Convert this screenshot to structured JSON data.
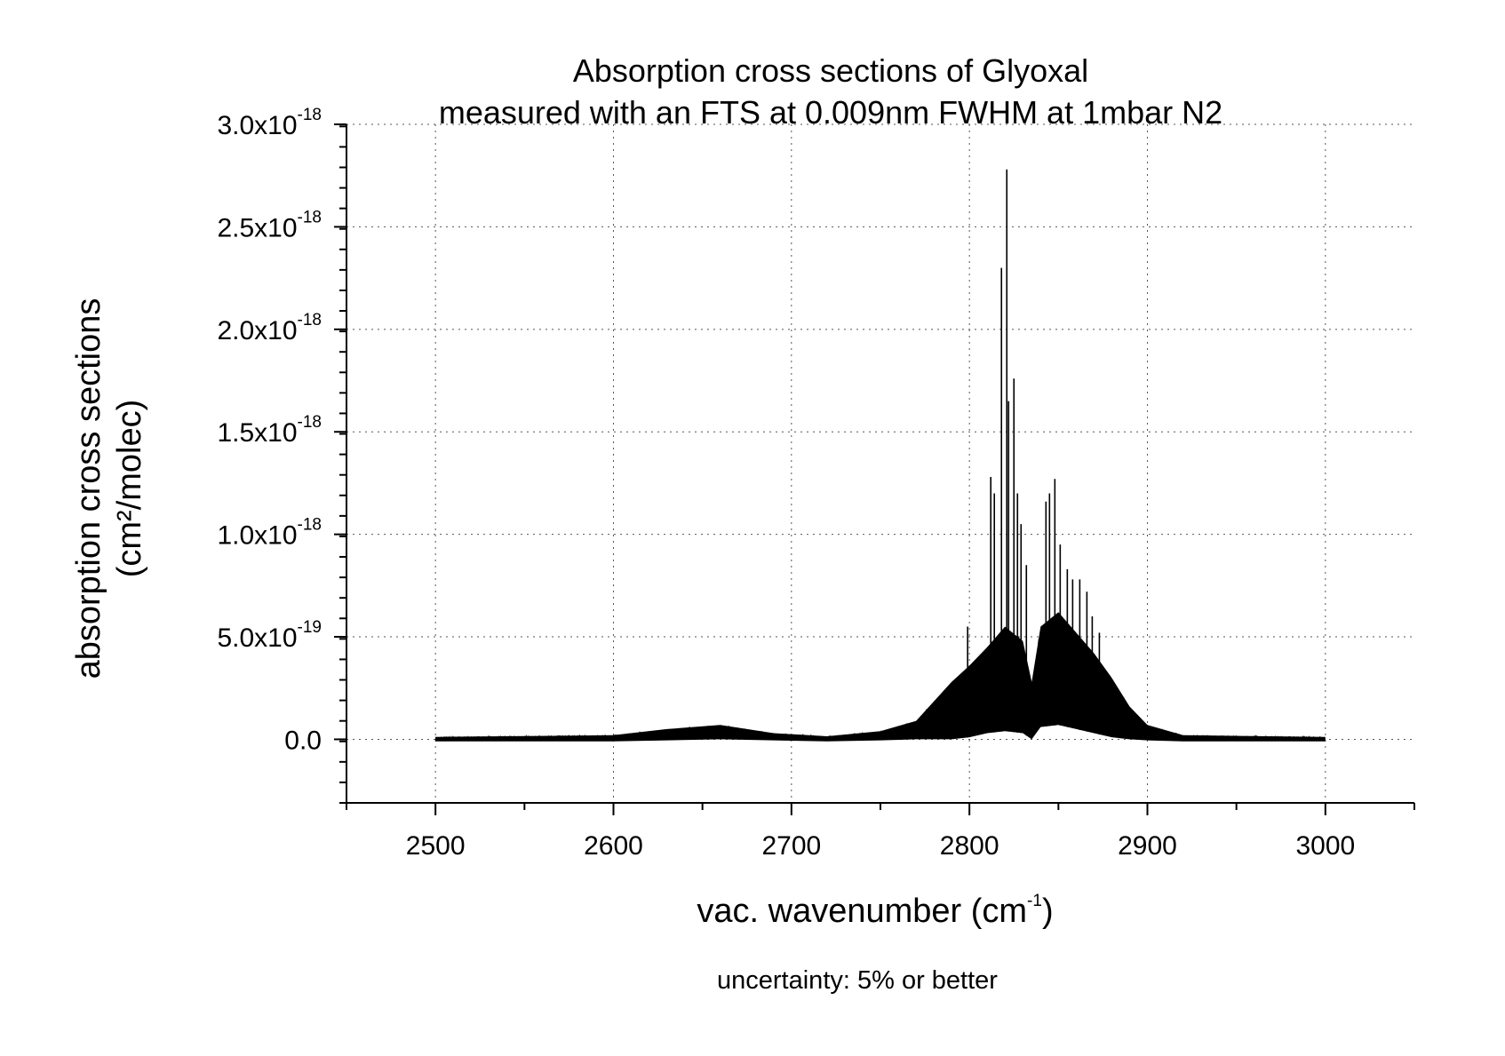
{
  "chart_data": {
    "type": "line",
    "title": [
      "Absorption cross sections of Glyoxal",
      "measured with an FTS at 0.009nm FWHM at 1mbar N2"
    ],
    "xlabel": {
      "main": "vac. wavenumber (cm",
      "sup": "-1",
      "tail": ")"
    },
    "ylabel": [
      "absorption cross sections",
      "(cm²/molec)"
    ],
    "note": "uncertainty: 5% or better",
    "xlim": [
      2450,
      3050
    ],
    "ylim": [
      -3.1e-19,
      3e-18
    ],
    "grid": true,
    "legend": "none",
    "line_color": "#000000",
    "x_ticks": [
      {
        "value": 2500,
        "label": "2500"
      },
      {
        "value": 2600,
        "label": "2600"
      },
      {
        "value": 2700,
        "label": "2700"
      },
      {
        "value": 2800,
        "label": "2800"
      },
      {
        "value": 2900,
        "label": "2900"
      },
      {
        "value": 3000,
        "label": "3000"
      }
    ],
    "y_ticks": [
      {
        "value": 0,
        "mantissa": "0.0",
        "exp": ""
      },
      {
        "value": 5e-19,
        "mantissa": "5.0x10",
        "exp": "-19"
      },
      {
        "value": 1e-18,
        "mantissa": "1.0x10",
        "exp": "-18"
      },
      {
        "value": 1.5e-18,
        "mantissa": "1.5x10",
        "exp": "-18"
      },
      {
        "value": 2e-18,
        "mantissa": "2.0x10",
        "exp": "-18"
      },
      {
        "value": 2.5e-18,
        "mantissa": "2.5x10",
        "exp": "-18"
      },
      {
        "value": 3e-18,
        "mantissa": "3.0x10",
        "exp": "-18"
      }
    ],
    "series": [
      {
        "x_range": [
          2500,
          3000
        ],
        "envelope": {
          "x": [
            2500,
            2600,
            2630,
            2660,
            2690,
            2720,
            2750,
            2770,
            2790,
            2800,
            2810,
            2820,
            2830,
            2835,
            2840,
            2850,
            2860,
            2870,
            2880,
            2890,
            2900,
            2920,
            3000
          ],
          "upper": [
            1.2e-20,
            2e-20,
            5e-20,
            7e-20,
            3e-20,
            1.5e-20,
            4e-20,
            9e-20,
            2.8e-19,
            3.6e-19,
            4.5e-19,
            5.5e-19,
            4.8e-19,
            2.8e-19,
            5.5e-19,
            6.2e-19,
            5.2e-19,
            4.2e-19,
            3e-19,
            1.6e-19,
            7e-20,
            2e-20,
            1.2e-20
          ],
          "lower": [
            -1e-20,
            -1e-20,
            -5e-21,
            0,
            -5e-21,
            -1e-20,
            -5e-21,
            0,
            0,
            1e-20,
            3e-20,
            4e-20,
            3e-20,
            0.0,
            6e-20,
            7e-20,
            5e-20,
            3e-20,
            1e-20,
            0,
            -5e-21,
            -1e-20,
            -1e-20
          ]
        },
        "peaks": [
          {
            "x": 2799,
            "y": 5.5e-19
          },
          {
            "x": 2812,
            "y": 1.28e-18
          },
          {
            "x": 2814,
            "y": 1.2e-18
          },
          {
            "x": 2818,
            "y": 2.3e-18
          },
          {
            "x": 2821,
            "y": 2.78e-18
          },
          {
            "x": 2822,
            "y": 1.65e-18
          },
          {
            "x": 2825,
            "y": 1.76e-18
          },
          {
            "x": 2827,
            "y": 1.2e-18
          },
          {
            "x": 2829,
            "y": 1.05e-18
          },
          {
            "x": 2832,
            "y": 8.5e-19
          },
          {
            "x": 2843,
            "y": 1.16e-18
          },
          {
            "x": 2845,
            "y": 1.2e-18
          },
          {
            "x": 2848,
            "y": 1.27e-18
          },
          {
            "x": 2851,
            "y": 9.5e-19
          },
          {
            "x": 2855,
            "y": 8.3e-19
          },
          {
            "x": 2858,
            "y": 7.8e-19
          },
          {
            "x": 2862,
            "y": 7.8e-19
          },
          {
            "x": 2866,
            "y": 7.2e-19
          },
          {
            "x": 2869,
            "y": 6e-19
          },
          {
            "x": 2873,
            "y": 5.2e-19
          }
        ]
      }
    ]
  }
}
